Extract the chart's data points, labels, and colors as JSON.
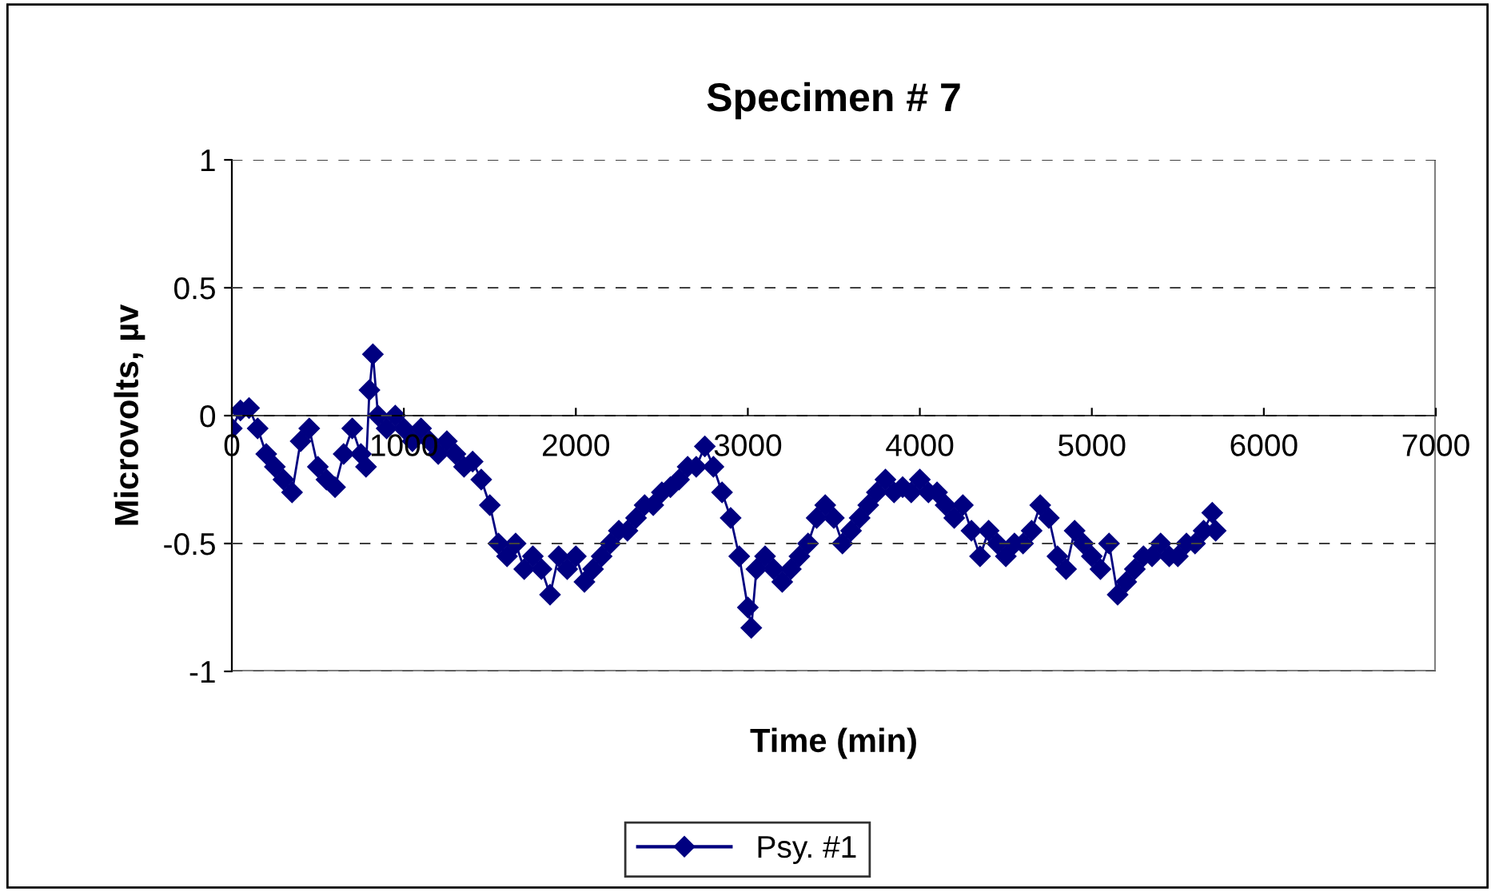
{
  "chart_data": {
    "type": "line",
    "title": "Specimen # 7",
    "xlabel": "Time (min)",
    "ylabel": "Microvolts, µv",
    "xlim": [
      0,
      7000
    ],
    "xticks": [
      0,
      1000,
      2000,
      3000,
      4000,
      5000,
      6000,
      7000
    ],
    "ylim": [
      -1,
      1
    ],
    "yticks": [
      -1,
      -0.5,
      0,
      0.5,
      1
    ],
    "grid": "y",
    "legend": "bottom",
    "marker": "diamond",
    "line_style": "solid",
    "series": [
      {
        "name": "Psy. #1",
        "color": "#000080",
        "x": [
          0,
          50,
          100,
          150,
          200,
          250,
          300,
          350,
          400,
          450,
          500,
          550,
          600,
          650,
          700,
          750,
          780,
          800,
          820,
          850,
          900,
          950,
          1000,
          1050,
          1100,
          1150,
          1200,
          1250,
          1300,
          1350,
          1400,
          1450,
          1500,
          1550,
          1600,
          1650,
          1700,
          1750,
          1800,
          1850,
          1900,
          1950,
          2000,
          2050,
          2100,
          2150,
          2200,
          2250,
          2300,
          2350,
          2400,
          2450,
          2500,
          2550,
          2600,
          2650,
          2700,
          2750,
          2800,
          2850,
          2900,
          2950,
          3000,
          3020,
          3050,
          3100,
          3150,
          3200,
          3250,
          3300,
          3350,
          3400,
          3450,
          3500,
          3550,
          3600,
          3650,
          3700,
          3750,
          3800,
          3850,
          3900,
          3950,
          4000,
          4050,
          4100,
          4150,
          4200,
          4250,
          4300,
          4350,
          4400,
          4450,
          4500,
          4550,
          4600,
          4650,
          4700,
          4750,
          4800,
          4850,
          4900,
          4950,
          5000,
          5050,
          5100,
          5150,
          5200,
          5250,
          5300,
          5350,
          5400,
          5450,
          5500,
          5550,
          5600,
          5650,
          5700,
          5720
        ],
        "values": [
          -0.05,
          0.02,
          0.03,
          -0.05,
          -0.15,
          -0.2,
          -0.25,
          -0.3,
          -0.1,
          -0.05,
          -0.2,
          -0.25,
          -0.28,
          -0.15,
          -0.05,
          -0.15,
          -0.2,
          0.1,
          0.24,
          0.0,
          -0.05,
          0.0,
          -0.05,
          -0.1,
          -0.05,
          -0.1,
          -0.15,
          -0.1,
          -0.15,
          -0.2,
          -0.18,
          -0.25,
          -0.35,
          -0.5,
          -0.55,
          -0.5,
          -0.6,
          -0.55,
          -0.6,
          -0.7,
          -0.55,
          -0.6,
          -0.55,
          -0.65,
          -0.6,
          -0.55,
          -0.5,
          -0.45,
          -0.45,
          -0.4,
          -0.35,
          -0.35,
          -0.3,
          -0.28,
          -0.25,
          -0.2,
          -0.2,
          -0.12,
          -0.2,
          -0.3,
          -0.4,
          -0.55,
          -0.75,
          -0.83,
          -0.6,
          -0.55,
          -0.6,
          -0.65,
          -0.6,
          -0.55,
          -0.5,
          -0.4,
          -0.35,
          -0.4,
          -0.5,
          -0.45,
          -0.4,
          -0.35,
          -0.3,
          -0.25,
          -0.3,
          -0.28,
          -0.3,
          -0.25,
          -0.3,
          -0.3,
          -0.35,
          -0.4,
          -0.35,
          -0.45,
          -0.55,
          -0.45,
          -0.5,
          -0.55,
          -0.5,
          -0.5,
          -0.45,
          -0.35,
          -0.4,
          -0.55,
          -0.6,
          -0.45,
          -0.5,
          -0.55,
          -0.6,
          -0.5,
          -0.7,
          -0.65,
          -0.6,
          -0.55,
          -0.55,
          -0.5,
          -0.55,
          -0.55,
          -0.5,
          -0.5,
          -0.45,
          -0.38,
          -0.45
        ]
      }
    ]
  }
}
